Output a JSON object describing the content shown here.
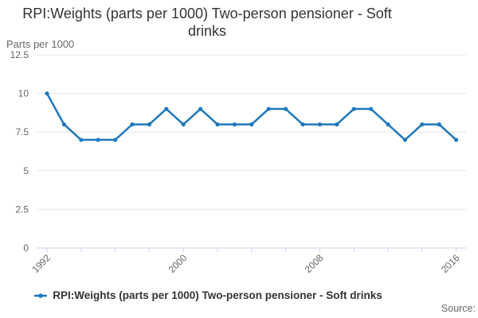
{
  "chart_data": {
    "type": "line",
    "title": "RPI:Weights (parts per 1000) Two-person pensioner - Soft drinks",
    "ylabel": "Parts per 1000",
    "xlabel": "",
    "x": [
      1992,
      1993,
      1994,
      1995,
      1996,
      1997,
      1998,
      1999,
      2000,
      2001,
      2002,
      2003,
      2004,
      2005,
      2006,
      2007,
      2008,
      2009,
      2010,
      2011,
      2012,
      2013,
      2014,
      2015,
      2016
    ],
    "series": [
      {
        "name": "RPI:Weights (parts per 1000) Two-person pensioner - Soft drinks",
        "values": [
          10,
          8,
          7,
          7,
          7,
          8,
          8,
          9,
          8,
          9,
          8,
          8,
          8,
          9,
          9,
          8,
          8,
          8,
          9,
          9,
          8,
          7,
          8,
          8,
          7
        ]
      }
    ],
    "ylim": [
      0,
      12.5
    ],
    "yticks": [
      0,
      2.5,
      5,
      7.5,
      10,
      12.5
    ],
    "xtick_interval": 2,
    "xlabel_interval": 8,
    "xtick_labels": [
      "1992",
      "2000",
      "2008",
      "2016"
    ],
    "grid": "horizontal",
    "legend_position": "bottom"
  },
  "footer": {
    "source_label": "Source:"
  },
  "colors": {
    "line": "#1e78bc",
    "grid": "#e6e6e6",
    "axis": "#ccd6eb",
    "title_text": "#333333",
    "label_text": "#666666"
  }
}
